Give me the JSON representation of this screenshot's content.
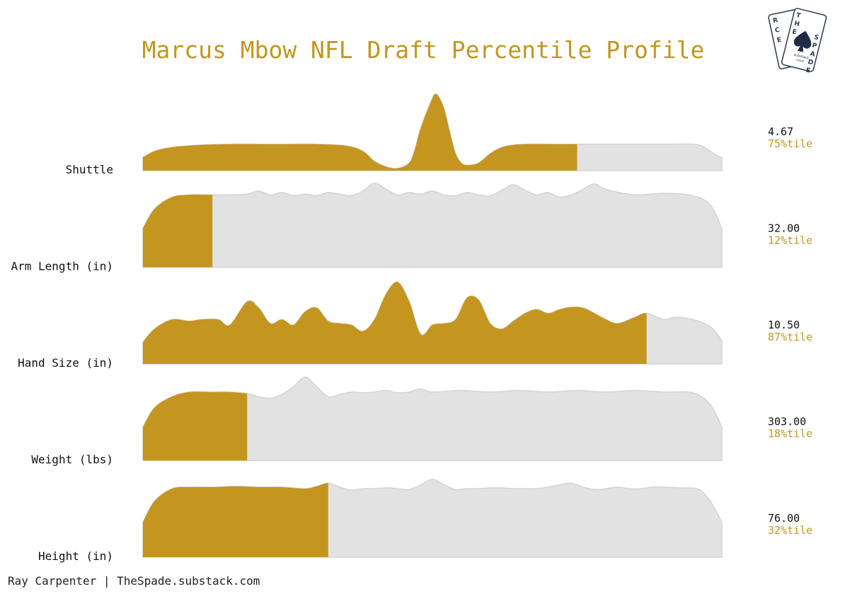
{
  "chart_data": {
    "type": "area",
    "title": "Marcus Mbow NFL Draft Percentile Profile",
    "credit": "Ray Carpenter | TheSpade.substack.com",
    "colors": {
      "highlight": "#c4961f",
      "rest": "#e2e2e2",
      "rest_stroke": "#d4d4d4",
      "title": "#c4961f"
    },
    "x_range": [
      0,
      1
    ],
    "series": [
      {
        "name": "Shuttle",
        "value": "4.67",
        "percentile_label": "75%tile",
        "percentile": 0.75,
        "x": [
          0,
          0.02,
          0.05,
          0.1,
          0.15,
          0.2,
          0.25,
          0.3,
          0.35,
          0.38,
          0.4,
          0.42,
          0.44,
          0.46,
          0.47,
          0.48,
          0.5,
          0.505,
          0.51,
          0.52,
          0.53,
          0.54,
          0.55,
          0.56,
          0.58,
          0.6,
          0.62,
          0.64,
          0.66,
          0.7,
          0.75,
          0.8,
          0.85,
          0.9,
          0.95,
          0.97,
          0.99,
          1
        ],
        "density": [
          0.17,
          0.25,
          0.3,
          0.33,
          0.34,
          0.34,
          0.34,
          0.34,
          0.32,
          0.25,
          0.12,
          0.05,
          0.03,
          0.1,
          0.28,
          0.55,
          0.93,
          0.98,
          0.96,
          0.8,
          0.5,
          0.22,
          0.1,
          0.07,
          0.1,
          0.22,
          0.3,
          0.33,
          0.34,
          0.34,
          0.34,
          0.34,
          0.34,
          0.34,
          0.34,
          0.3,
          0.2,
          0.17
        ]
      },
      {
        "name": "Arm Length (in)",
        "value": "32.00",
        "percentile_label": "12%tile",
        "percentile": 0.12,
        "x": [
          0,
          0.02,
          0.05,
          0.08,
          0.12,
          0.15,
          0.18,
          0.2,
          0.22,
          0.24,
          0.26,
          0.28,
          0.3,
          0.32,
          0.34,
          0.36,
          0.38,
          0.4,
          0.42,
          0.44,
          0.46,
          0.48,
          0.5,
          0.52,
          0.54,
          0.56,
          0.58,
          0.6,
          0.62,
          0.64,
          0.66,
          0.68,
          0.7,
          0.72,
          0.74,
          0.76,
          0.78,
          0.8,
          0.85,
          0.9,
          0.95,
          0.98,
          1
        ],
        "density": [
          0.5,
          0.75,
          0.9,
          0.93,
          0.93,
          0.93,
          0.94,
          0.98,
          0.93,
          0.96,
          0.92,
          0.94,
          0.92,
          0.96,
          0.94,
          0.92,
          0.98,
          1.08,
          1.0,
          0.93,
          0.96,
          0.94,
          0.98,
          0.93,
          0.92,
          0.96,
          0.93,
          0.92,
          0.99,
          1.06,
          0.99,
          0.93,
          0.96,
          0.9,
          0.93,
          1.0,
          1.07,
          1.0,
          0.93,
          0.95,
          0.92,
          0.8,
          0.5
        ]
      },
      {
        "name": "Hand Size (in)",
        "value": "10.50",
        "percentile_label": "87%tile",
        "percentile": 0.87,
        "x": [
          0,
          0.02,
          0.05,
          0.08,
          0.1,
          0.13,
          0.15,
          0.18,
          0.2,
          0.22,
          0.24,
          0.26,
          0.28,
          0.3,
          0.32,
          0.34,
          0.36,
          0.38,
          0.4,
          0.42,
          0.44,
          0.46,
          0.48,
          0.5,
          0.52,
          0.54,
          0.56,
          0.58,
          0.6,
          0.62,
          0.64,
          0.66,
          0.68,
          0.7,
          0.72,
          0.74,
          0.76,
          0.78,
          0.8,
          0.82,
          0.85,
          0.87,
          0.9,
          0.92,
          0.95,
          0.98,
          1
        ],
        "density": [
          0.28,
          0.45,
          0.57,
          0.55,
          0.57,
          0.57,
          0.5,
          0.8,
          0.72,
          0.52,
          0.57,
          0.5,
          0.67,
          0.72,
          0.55,
          0.52,
          0.5,
          0.42,
          0.57,
          0.9,
          1.05,
          0.8,
          0.38,
          0.5,
          0.52,
          0.57,
          0.85,
          0.82,
          0.52,
          0.45,
          0.55,
          0.65,
          0.7,
          0.65,
          0.7,
          0.73,
          0.72,
          0.65,
          0.57,
          0.52,
          0.6,
          0.65,
          0.57,
          0.6,
          0.57,
          0.48,
          0.3
        ]
      },
      {
        "name": "Weight (lbs)",
        "value": "303.00",
        "percentile_label": "18%tile",
        "percentile": 0.18,
        "x": [
          0,
          0.02,
          0.05,
          0.08,
          0.12,
          0.15,
          0.18,
          0.2,
          0.22,
          0.24,
          0.26,
          0.28,
          0.3,
          0.32,
          0.34,
          0.36,
          0.38,
          0.4,
          0.42,
          0.44,
          0.46,
          0.48,
          0.5,
          0.55,
          0.6,
          0.65,
          0.7,
          0.75,
          0.8,
          0.85,
          0.9,
          0.95,
          0.98,
          1
        ],
        "density": [
          0.43,
          0.68,
          0.82,
          0.88,
          0.88,
          0.88,
          0.86,
          0.82,
          0.8,
          0.85,
          0.95,
          1.07,
          0.95,
          0.82,
          0.85,
          0.88,
          0.87,
          0.88,
          0.9,
          0.87,
          0.88,
          0.92,
          0.88,
          0.9,
          0.88,
          0.9,
          0.88,
          0.9,
          0.88,
          0.9,
          0.88,
          0.87,
          0.72,
          0.43
        ]
      },
      {
        "name": "Height (in)",
        "value": "76.00",
        "percentile_label": "32%tile",
        "percentile": 0.32,
        "x": [
          0,
          0.02,
          0.05,
          0.08,
          0.12,
          0.16,
          0.2,
          0.24,
          0.28,
          0.3,
          0.32,
          0.34,
          0.36,
          0.38,
          0.4,
          0.42,
          0.44,
          0.46,
          0.48,
          0.5,
          0.52,
          0.54,
          0.56,
          0.58,
          0.6,
          0.62,
          0.64,
          0.66,
          0.68,
          0.7,
          0.72,
          0.74,
          0.76,
          0.78,
          0.8,
          0.82,
          0.84,
          0.86,
          0.88,
          0.9,
          0.93,
          0.96,
          0.98,
          1
        ],
        "density": [
          0.45,
          0.72,
          0.88,
          0.9,
          0.9,
          0.91,
          0.9,
          0.9,
          0.88,
          0.91,
          0.95,
          0.9,
          0.86,
          0.88,
          0.88,
          0.89,
          0.88,
          0.87,
          0.93,
          1.0,
          0.93,
          0.87,
          0.88,
          0.88,
          0.89,
          0.89,
          0.88,
          0.88,
          0.88,
          0.9,
          0.93,
          0.95,
          0.9,
          0.87,
          0.88,
          0.9,
          0.88,
          0.88,
          0.9,
          0.9,
          0.89,
          0.87,
          0.72,
          0.45
        ]
      }
    ]
  },
  "logo": {
    "left_card_letters": [
      "R",
      "C",
      "E"
    ],
    "right_card_letters": [
      "T",
      "H",
      "E",
      "S",
      "P",
      "A",
      "D",
      "E"
    ],
    "small_text": [
      "substack",
      ".com"
    ]
  }
}
